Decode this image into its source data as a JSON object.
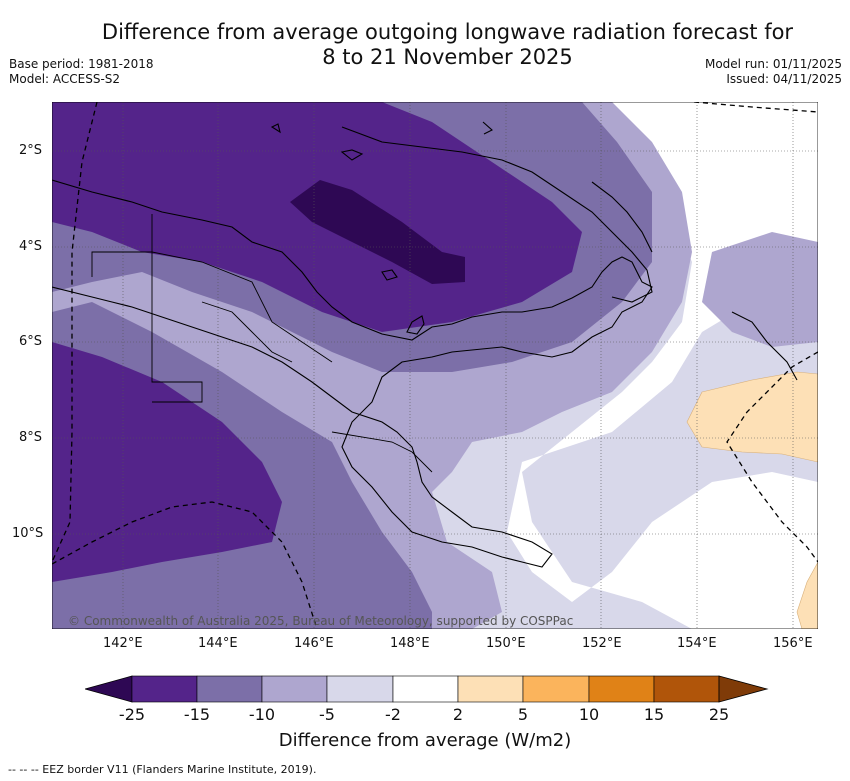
{
  "title": {
    "line1": "Difference from average outgoing longwave radiation forecast for",
    "line2": "8 to 21 November 2025"
  },
  "meta": {
    "base_period": "Base period: 1981-2018",
    "model": "Model: ACCESS-S2",
    "model_run": "Model run: 01/11/2025",
    "issued": "Issued: 04/11/2025"
  },
  "map": {
    "lat_labels": [
      "2°S",
      "4°S",
      "6°S",
      "8°S",
      "10°S"
    ],
    "lon_labels": [
      "142°E",
      "144°E",
      "146°E",
      "148°E",
      "150°E",
      "152°E",
      "154°E",
      "156°E"
    ],
    "credit": "© Commonwealth of Australia 2025, Bureau of Meteorology, supported by COSPPac"
  },
  "colorbar": {
    "ticks": [
      "-25",
      "-15",
      "-10",
      "-5",
      "-2",
      "2",
      "5",
      "10",
      "15",
      "25"
    ],
    "colors": [
      "#2e0854",
      "#54248a",
      "#7c6fa8",
      "#aea6cf",
      "#d8d8ea",
      "#ffffff",
      "#fde0b6",
      "#fbb45c",
      "#e08217",
      "#b0550a",
      "#7f3b08"
    ],
    "label": "Difference from average (W/m2)"
  },
  "footer": "--  --  -- EEZ border V11 (Flanders Marine Institute, 2019)."
}
